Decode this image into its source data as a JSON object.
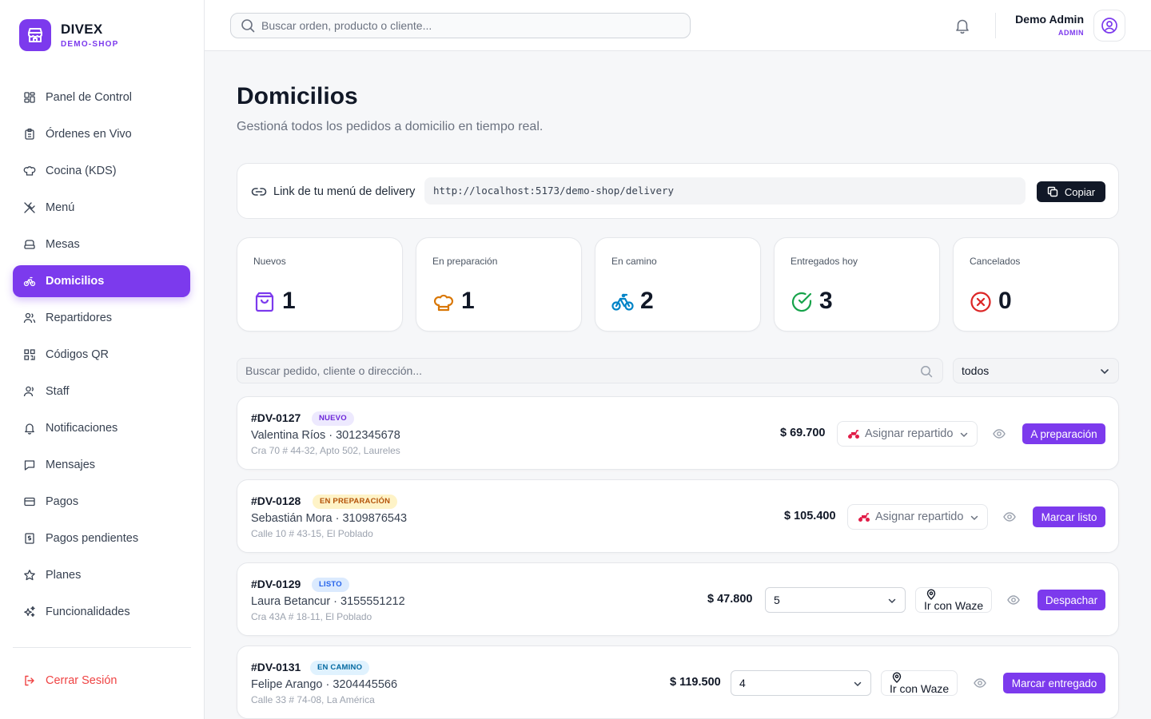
{
  "brand": {
    "name": "DIVEX",
    "sub": "DEMO-SHOP"
  },
  "nav": [
    {
      "label": "Panel de Control",
      "icon": "dashboard-icon"
    },
    {
      "label": "Órdenes en Vivo",
      "icon": "clipboard-icon"
    },
    {
      "label": "Cocina (KDS)",
      "icon": "chef-hat-icon"
    },
    {
      "label": "Menú",
      "icon": "utensils-icon"
    },
    {
      "label": "Mesas",
      "icon": "table-icon"
    },
    {
      "label": "Domicilios",
      "icon": "bike-icon",
      "active": true
    },
    {
      "label": "Repartidores",
      "icon": "users-icon"
    },
    {
      "label": "Códigos QR",
      "icon": "qr-code-icon"
    },
    {
      "label": "Staff",
      "icon": "user-icon"
    },
    {
      "label": "Notificaciones",
      "icon": "bell-icon"
    },
    {
      "label": "Mensajes",
      "icon": "message-icon"
    },
    {
      "label": "Pagos",
      "icon": "credit-card-icon"
    },
    {
      "label": "Pagos pendientes",
      "icon": "receipt-icon"
    },
    {
      "label": "Planes",
      "icon": "star-icon"
    },
    {
      "label": "Funcionalidades",
      "icon": "sparkles-icon"
    }
  ],
  "logout": "Cerrar Sesión",
  "topbar": {
    "search_placeholder": "Buscar orden, producto o cliente...",
    "user_name": "Demo Admin",
    "user_role": "ADMIN"
  },
  "page": {
    "title": "Domicilios",
    "subtitle": "Gestioná todos los pedidos a domicilio en tiempo real."
  },
  "delivery_link": {
    "label": "Link de tu menú de delivery",
    "url": "http://localhost:5173/demo-shop/delivery",
    "copy_label": "Copiar"
  },
  "stats": [
    {
      "label": "Nuevos",
      "value": "1",
      "icon": "shopping-bag-icon",
      "color": "#7c3aed"
    },
    {
      "label": "En preparación",
      "value": "1",
      "icon": "chef-hat-icon",
      "color": "#d97706"
    },
    {
      "label": "En camino",
      "value": "2",
      "icon": "bike-icon",
      "color": "#0284c7"
    },
    {
      "label": "Entregados hoy",
      "value": "3",
      "icon": "check-circle-icon",
      "color": "#16a34a"
    },
    {
      "label": "Cancelados",
      "value": "0",
      "icon": "x-circle-icon",
      "color": "#dc2626"
    }
  ],
  "filters": {
    "search_placeholder": "Buscar pedido, cliente o dirección...",
    "status_value": "todos"
  },
  "orders": [
    {
      "id": "#DV-0127",
      "status": "NUEVO",
      "customer": "Valentina Ríos · 3012345678",
      "address": "Cra 70 # 44-32, Apto 502, Laureles",
      "total": "$ 69.700",
      "assign_label": "Asignar repartido",
      "action": "A preparación"
    },
    {
      "id": "#DV-0128",
      "status": "EN PREPARACIÓN",
      "customer": "Sebastián Mora · 3109876543",
      "address": "Calle 10 # 43-15, El Poblado",
      "total": "$ 105.400",
      "assign_label": "Asignar repartido",
      "action": "Marcar listo"
    },
    {
      "id": "#DV-0129",
      "status": "LISTO",
      "customer": "Laura Betancur · 3155551212",
      "address": "Cra 43A # 18-11, El Poblado",
      "total": "$ 47.800",
      "driver": "5",
      "waze": "Ir con Waze",
      "action": "Despachar"
    },
    {
      "id": "#DV-0131",
      "status": "EN CAMINO",
      "customer": "Felipe Arango · 3204445566",
      "address": "Calle 33 # 74-08, La América",
      "total": "$ 119.500",
      "driver": "4",
      "waze": "Ir con Waze",
      "action": "Marcar entregado"
    }
  ],
  "colors": {
    "accent": "#7c3aed",
    "danger": "#ef4444"
  }
}
